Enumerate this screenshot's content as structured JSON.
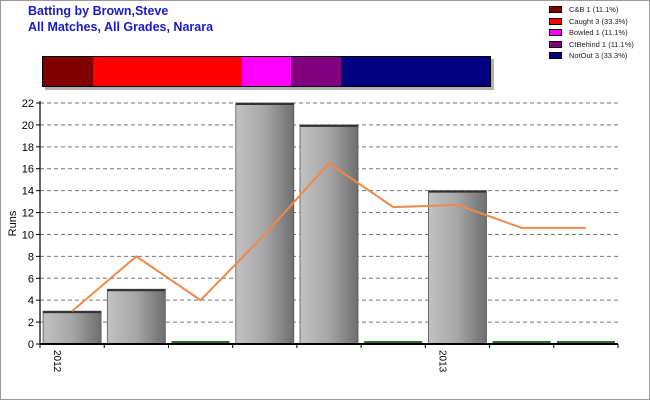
{
  "title": {
    "line1": "Batting by Brown,Steve",
    "line2": "All Matches, All Grades, Narara"
  },
  "legend": [
    {
      "label": "C&B 1 (11.1%)",
      "color": "#800000"
    },
    {
      "label": "Caught 3 (33.3%)",
      "color": "#ff0000"
    },
    {
      "label": "Bowled 1 (11.1%)",
      "color": "#ff00ff"
    },
    {
      "label": "CtBehind 1 (11.1%)",
      "color": "#800080"
    },
    {
      "label": "NotOut 3 (33.3%)",
      "color": "#000080"
    }
  ],
  "dismissal_bar": [
    {
      "name": "C&B",
      "count": 1,
      "color": "#800000"
    },
    {
      "name": "Caught",
      "count": 3,
      "color": "#ff0000"
    },
    {
      "name": "Bowled",
      "count": 1,
      "color": "#ff00ff"
    },
    {
      "name": "CtBehind",
      "count": 1,
      "color": "#800080"
    },
    {
      "name": "NotOut",
      "count": 3,
      "color": "#000080"
    }
  ],
  "chart_data": {
    "type": "bar",
    "ylabel": "Runs",
    "ylim": [
      0,
      22
    ],
    "yticks": [
      0,
      2,
      4,
      6,
      8,
      10,
      12,
      14,
      16,
      18,
      20,
      22
    ],
    "grid": "horizontal dashed",
    "innings": [
      {
        "runs": 3,
        "avg": 3.0
      },
      {
        "runs": 5,
        "avg": 8.0
      },
      {
        "runs": 0,
        "avg": 4.0
      },
      {
        "runs": 22,
        "avg": 10.0
      },
      {
        "runs": 20,
        "avg": 16.5
      },
      {
        "runs": 0,
        "avg": 12.5
      },
      {
        "runs": 14,
        "avg": 12.7
      },
      {
        "runs": 0,
        "avg": 10.6
      },
      {
        "runs": 0,
        "avg": 10.6
      }
    ],
    "xtick_labels": [
      {
        "index": 0,
        "label": "2012"
      },
      {
        "index": 6,
        "label": "2013"
      }
    ],
    "bar_color": "#a0a0a0",
    "zero_marker_color": "#2e6b2e",
    "average_line_color": "#f08848"
  }
}
